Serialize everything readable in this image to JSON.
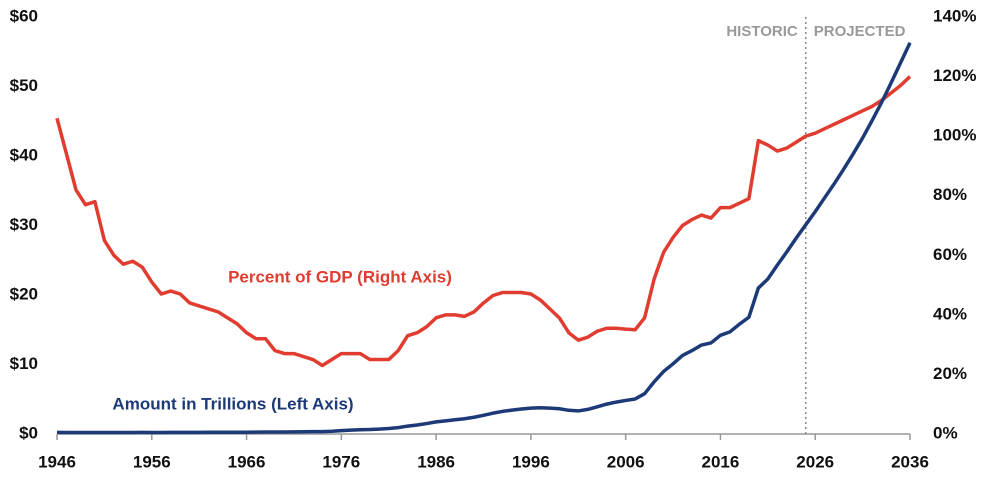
{
  "chart_data": {
    "type": "line",
    "annotations": {
      "historic": "HISTORIC",
      "projected": "PROJECTED"
    },
    "projection_start": 2025,
    "x": [
      1946,
      1947,
      1948,
      1949,
      1950,
      1951,
      1952,
      1953,
      1954,
      1955,
      1956,
      1957,
      1958,
      1959,
      1960,
      1961,
      1962,
      1963,
      1964,
      1965,
      1966,
      1967,
      1968,
      1969,
      1970,
      1971,
      1972,
      1973,
      1974,
      1975,
      1976,
      1977,
      1978,
      1979,
      1980,
      1981,
      1982,
      1983,
      1984,
      1985,
      1986,
      1987,
      1988,
      1989,
      1990,
      1991,
      1992,
      1993,
      1994,
      1995,
      1996,
      1997,
      1998,
      1999,
      2000,
      2001,
      2002,
      2003,
      2004,
      2005,
      2006,
      2007,
      2008,
      2009,
      2010,
      2011,
      2012,
      2013,
      2014,
      2015,
      2016,
      2017,
      2018,
      2019,
      2020,
      2021,
      2022,
      2023,
      2024,
      2025,
      2026,
      2027,
      2028,
      2029,
      2030,
      2031,
      2032,
      2033,
      2034,
      2035,
      2036
    ],
    "series": [
      {
        "name": "Percent of GDP (Right Axis)",
        "color": "#e03c2f",
        "axis": "y2",
        "values": [
          106,
          94,
          82,
          77,
          78,
          65,
          60,
          57,
          58,
          56,
          51,
          47,
          48,
          47,
          44,
          43,
          42,
          41,
          39,
          37,
          34,
          32,
          32,
          28,
          27,
          27,
          26,
          25,
          23,
          25,
          27,
          27,
          27,
          25,
          25,
          25,
          28,
          33,
          34,
          36,
          39,
          40,
          40,
          39.5,
          41,
          44,
          46.5,
          47.5,
          47.5,
          47.5,
          47,
          45,
          42,
          39,
          34,
          31.5,
          32.5,
          34.5,
          35.5,
          35.5,
          35.2,
          35,
          39,
          52,
          61,
          66,
          70,
          72,
          73.5,
          72.5,
          76,
          76,
          77.5,
          79,
          98.5,
          97,
          95,
          96,
          98,
          100,
          101,
          102.5,
          104,
          105.5,
          107,
          108.5,
          110,
          112,
          114.5,
          117,
          120
        ]
      },
      {
        "name": "Amount in Trillions (Left Axis)",
        "color": "#1d3a78",
        "values": [
          0.24,
          0.22,
          0.22,
          0.21,
          0.22,
          0.21,
          0.21,
          0.22,
          0.22,
          0.23,
          0.22,
          0.22,
          0.23,
          0.23,
          0.24,
          0.24,
          0.25,
          0.25,
          0.26,
          0.26,
          0.26,
          0.27,
          0.29,
          0.28,
          0.28,
          0.3,
          0.32,
          0.34,
          0.34,
          0.39,
          0.48,
          0.55,
          0.61,
          0.64,
          0.71,
          0.79,
          0.92,
          1.14,
          1.3,
          1.5,
          1.74,
          1.89,
          2.05,
          2.19,
          2.41,
          2.69,
          3.0,
          3.25,
          3.43,
          3.6,
          3.73,
          3.77,
          3.72,
          3.63,
          3.41,
          3.32,
          3.54,
          3.91,
          4.3,
          4.59,
          4.83,
          5.04,
          5.8,
          7.5,
          9.0,
          10.1,
          11.3,
          12.0,
          12.8,
          13.1,
          14.2,
          14.7,
          15.8,
          16.8,
          21.0,
          22.3,
          24.3,
          26.2,
          28.2,
          30.1,
          32.0,
          34,
          36,
          38.1,
          40.3,
          42.6,
          45.1,
          47.7,
          50.5,
          53.4,
          56.3
        ]
      }
    ],
    "xlim": [
      1946,
      2036
    ],
    "xticks": [
      1946,
      1956,
      1966,
      1976,
      1986,
      1996,
      2006,
      2016,
      2026,
      2036
    ],
    "ylim": [
      0,
      60
    ],
    "yticks": [
      {
        "value": 0,
        "label": "$0"
      },
      {
        "value": 10,
        "label": "$10"
      },
      {
        "value": 20,
        "label": "$20"
      },
      {
        "value": 30,
        "label": "$30"
      },
      {
        "value": 40,
        "label": "$40"
      },
      {
        "value": 50,
        "label": "$50"
      },
      {
        "value": 60,
        "label": "$60"
      }
    ],
    "y2lim": [
      0,
      140
    ],
    "y2ticks": [
      {
        "value": 0,
        "label": "0%"
      },
      {
        "value": 20,
        "label": "20%"
      },
      {
        "value": 40,
        "label": "40%"
      },
      {
        "value": 60,
        "label": "60%"
      },
      {
        "value": 80,
        "label": "80%"
      },
      {
        "value": 100,
        "label": "100%"
      },
      {
        "value": 120,
        "label": "120%"
      },
      {
        "value": 140,
        "label": "140%"
      }
    ]
  }
}
